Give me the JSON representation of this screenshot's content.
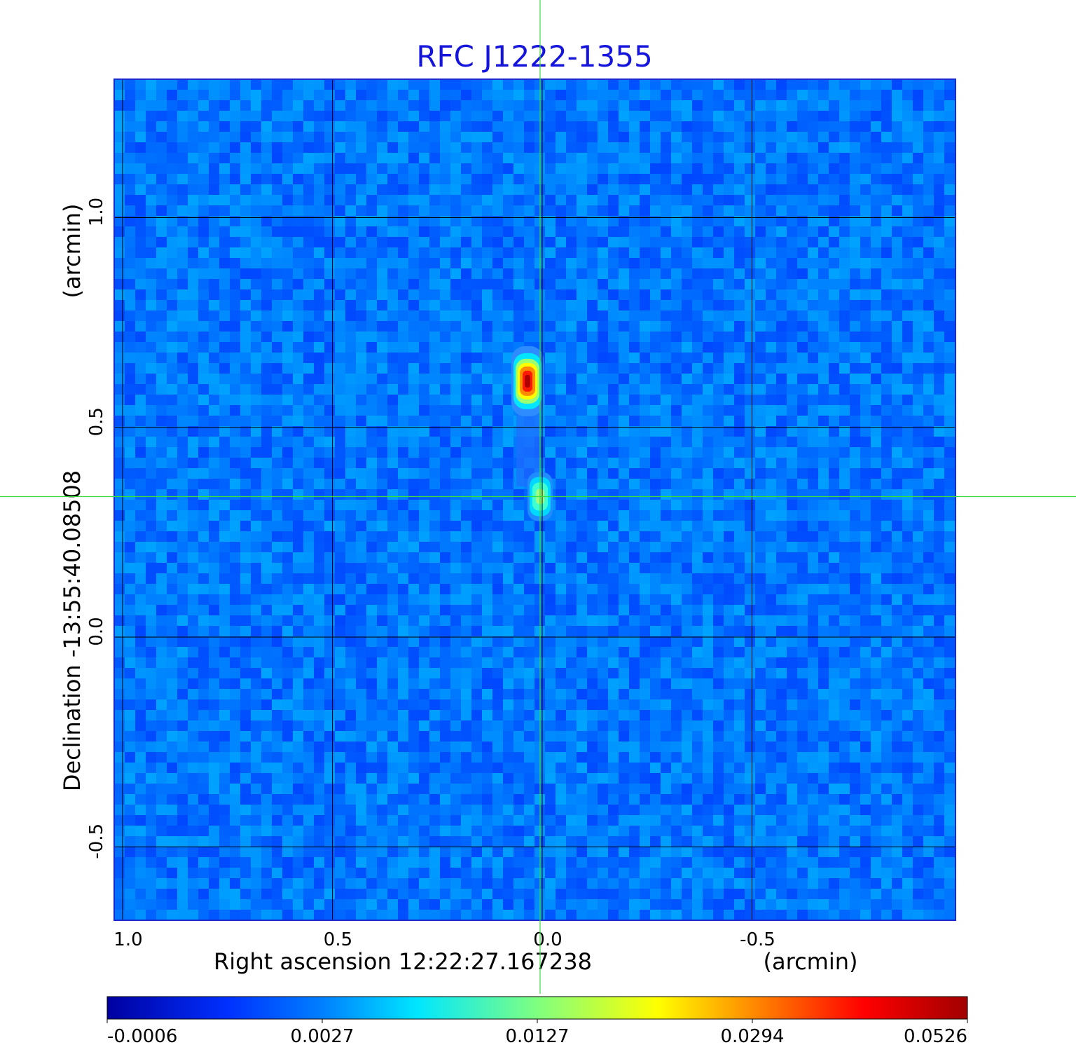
{
  "chart_data": {
    "type": "heatmap",
    "title": "RFC J1222-1355",
    "title_color": "#1414dc",
    "xlabel": "Right ascension  12:22:27.167238",
    "xunit": "(arcmin)",
    "ylabel": "Declination  -13:55:40.08508",
    "yunit": "(arcmin)",
    "x_ticks": [
      {
        "value": 1.0,
        "label": "1.0"
      },
      {
        "value": 0.5,
        "label": "0.5"
      },
      {
        "value": 0.0,
        "label": "0.0"
      },
      {
        "value": -0.5,
        "label": "-0.5"
      }
    ],
    "y_ticks": [
      {
        "value": 1.0,
        "label": "1.0"
      },
      {
        "value": 0.5,
        "label": "0.5"
      },
      {
        "value": 0.0,
        "label": "0.0"
      },
      {
        "value": -0.5,
        "label": "-0.5"
      }
    ],
    "xlim": [
      1.02,
      -0.985
    ],
    "ylim": [
      -0.675,
      1.33
    ],
    "grid": true,
    "crosshair": {
      "x": 0.005,
      "y": 0.335,
      "color": "#3cdc3c"
    },
    "colorbar": {
      "ticks": [
        "-0.0006",
        "0.0027",
        "0.0127",
        "0.0294",
        "0.0526"
      ],
      "colors": [
        "#0000a0",
        "#0040ff",
        "#00e6ff",
        "#80ff80",
        "#ffff00",
        "#ff8000",
        "#ff0000",
        "#a00000"
      ]
    },
    "background_level": 0.0,
    "sources": [
      {
        "ra": 0.035,
        "dec": 0.61,
        "peak": 0.0526
      },
      {
        "ra": 0.005,
        "dec": 0.335,
        "peak": 0.0127
      }
    ]
  }
}
